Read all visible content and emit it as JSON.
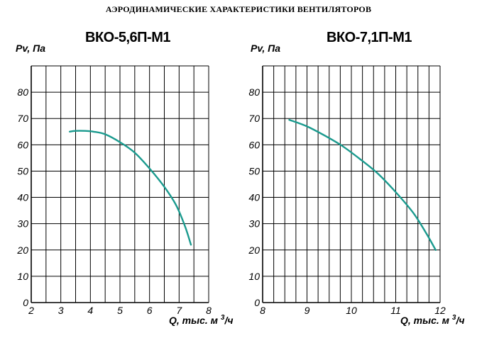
{
  "page": {
    "title": "АЭРОДИНАМИЧЕСКИЕ ХАРАКТЕРИСТИКИ ВЕНТИЛЯТОРОВ"
  },
  "chart_data": [
    {
      "type": "line",
      "title": "ВКО-5,6П-М1",
      "ylabel": "Pv, Па",
      "xlabel": "Q, тыс. м 3/ч",
      "xlim": [
        2,
        8
      ],
      "ylim": [
        0,
        90
      ],
      "x_ticks": [
        "2",
        "3",
        "4",
        "5",
        "6",
        "7",
        "8"
      ],
      "y_ticks": [
        "0",
        "10",
        "20",
        "30",
        "40",
        "50",
        "60",
        "70",
        "80"
      ],
      "grid": true,
      "line_color": "#1a9a8e",
      "series": [
        {
          "x": [
            3.3,
            3.5,
            3.8,
            4.1,
            4.5,
            5.0,
            5.5,
            6.0,
            6.5,
            6.9,
            7.2,
            7.4
          ],
          "y": [
            65,
            65.3,
            65.3,
            65,
            64,
            61,
            57,
            51,
            44,
            37,
            29,
            22
          ]
        }
      ]
    },
    {
      "type": "line",
      "title": "ВКО-7,1П-М1",
      "ylabel": "Pv, Па",
      "xlabel": "Q, тыс. м 3/ч",
      "xlim": [
        8,
        12
      ],
      "ylim": [
        0,
        90
      ],
      "x_ticks": [
        "8",
        "9",
        "10",
        "11",
        "12"
      ],
      "y_ticks": [
        "0",
        "10",
        "20",
        "30",
        "40",
        "50",
        "60",
        "70",
        "80"
      ],
      "grid": true,
      "line_color": "#1a9a8e",
      "series": [
        {
          "x": [
            8.6,
            9.0,
            9.4,
            9.8,
            10.2,
            10.6,
            11.0,
            11.4,
            11.7,
            11.9
          ],
          "y": [
            69.5,
            67,
            63.5,
            59.5,
            54.5,
            49,
            42,
            34,
            26,
            20
          ]
        }
      ]
    }
  ]
}
